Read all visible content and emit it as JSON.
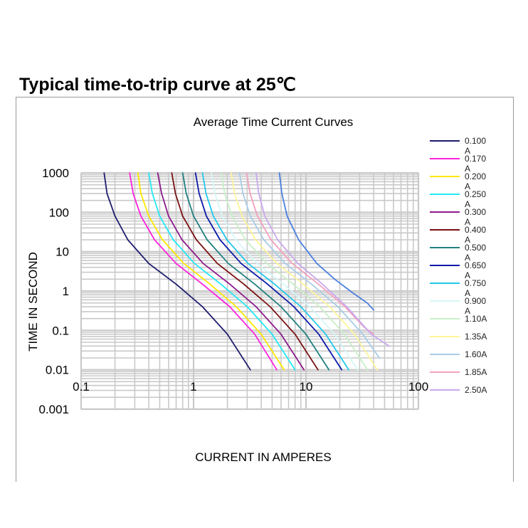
{
  "page": {
    "heading": "Typical time-to-trip curve at 25℃"
  },
  "chart_data": {
    "type": "line",
    "title": "Average Time Current Curves",
    "xlabel": "CURRENT IN AMPERES",
    "ylabel": "TIME IN SECOND",
    "xscale": "log",
    "yscale": "log",
    "xlim": [
      0.1,
      100
    ],
    "ylim": [
      0.001,
      1000
    ],
    "xticks": [
      "0.1",
      "1",
      "10",
      "100"
    ],
    "yticks": [
      "1000",
      "100",
      "10",
      "1",
      "0.1",
      "0.01",
      "0.001"
    ],
    "grid": true,
    "legend_position": "right",
    "series": [
      {
        "name": "0.100 A",
        "color": "#1c1c6e",
        "x": [
          0.16,
          0.17,
          0.2,
          0.26,
          0.4,
          0.7,
          1.2,
          2.0,
          3.2
        ],
        "y": [
          1000,
          300,
          80,
          20,
          5,
          1.5,
          0.4,
          0.08,
          0.01
        ]
      },
      {
        "name": "0.170 A",
        "color": "#ff22dd",
        "x": [
          0.27,
          0.29,
          0.34,
          0.45,
          0.7,
          1.2,
          2.1,
          3.5,
          5.5
        ],
        "y": [
          1000,
          300,
          80,
          20,
          5,
          1.5,
          0.4,
          0.08,
          0.01
        ]
      },
      {
        "name": "0.200 A",
        "color": "#ffe800",
        "x": [
          0.32,
          0.34,
          0.4,
          0.53,
          0.82,
          1.4,
          2.4,
          4.0,
          6.4
        ],
        "y": [
          1000,
          300,
          80,
          20,
          5,
          1.5,
          0.4,
          0.08,
          0.01
        ]
      },
      {
        "name": "0.250 A",
        "color": "#22e8f5",
        "x": [
          0.4,
          0.43,
          0.5,
          0.66,
          1.02,
          1.75,
          3.0,
          5.0,
          8.0
        ],
        "y": [
          1000,
          300,
          80,
          20,
          5,
          1.5,
          0.4,
          0.08,
          0.01
        ]
      },
      {
        "name": "0.300 A",
        "color": "#8b1a8b",
        "x": [
          0.48,
          0.52,
          0.6,
          0.79,
          1.22,
          2.1,
          3.6,
          6.0,
          9.6
        ],
        "y": [
          1000,
          300,
          80,
          20,
          5,
          1.5,
          0.4,
          0.08,
          0.01
        ]
      },
      {
        "name": "0.400 A",
        "color": "#7a1010",
        "x": [
          0.64,
          0.69,
          0.8,
          1.06,
          1.63,
          2.8,
          4.8,
          8.0,
          12.8
        ],
        "y": [
          1000,
          300,
          80,
          20,
          5,
          1.5,
          0.4,
          0.08,
          0.01
        ]
      },
      {
        "name": "0.500 A",
        "color": "#218080",
        "x": [
          0.8,
          0.86,
          1.0,
          1.32,
          2.04,
          3.5,
          6.0,
          10.0,
          16.0
        ],
        "y": [
          1000,
          300,
          80,
          20,
          5,
          1.5,
          0.4,
          0.08,
          0.01
        ]
      },
      {
        "name": "0.650 A",
        "color": "#0a1aa8",
        "x": [
          1.04,
          1.12,
          1.3,
          1.72,
          2.65,
          4.55,
          7.8,
          13.0,
          20.8
        ],
        "y": [
          1000,
          300,
          80,
          20,
          5,
          1.5,
          0.4,
          0.08,
          0.01
        ]
      },
      {
        "name": "0.750 A",
        "color": "#22c8ec",
        "x": [
          1.2,
          1.29,
          1.5,
          1.98,
          3.06,
          5.25,
          9.0,
          15.0,
          24.0
        ],
        "y": [
          1000,
          300,
          80,
          20,
          5,
          1.5,
          0.4,
          0.08,
          0.01
        ]
      },
      {
        "name": "0.900 A",
        "color": "#d6f7f7",
        "x": [
          1.44,
          1.55,
          1.8,
          2.38,
          3.67,
          6.3,
          10.8,
          18.0,
          28.8
        ],
        "y": [
          1000,
          300,
          80,
          20,
          5,
          1.5,
          0.4,
          0.08,
          0.01
        ]
      },
      {
        "name": "1.10A",
        "color": "#c8f0c8",
        "x": [
          1.76,
          1.89,
          2.2,
          2.9,
          4.49,
          7.7,
          13.2,
          22.0,
          35.2
        ],
        "y": [
          1000,
          300,
          80,
          20,
          5,
          1.5,
          0.4,
          0.08,
          0.01
        ]
      },
      {
        "name": "1.35A",
        "color": "#fdf59a",
        "x": [
          2.16,
          2.32,
          2.7,
          3.56,
          5.51,
          9.45,
          16.2,
          27.0,
          43.0
        ],
        "y": [
          1000,
          300,
          80,
          20,
          5,
          1.5,
          0.4,
          0.08,
          0.01
        ]
      },
      {
        "name": "1.60A",
        "color": "#a8cce8",
        "x": [
          2.56,
          2.75,
          3.2,
          4.22,
          6.53,
          11.2,
          19.2,
          32.0,
          45.0
        ],
        "y": [
          1000,
          300,
          80,
          20,
          5,
          1.5,
          0.4,
          0.08,
          0.02
        ]
      },
      {
        "name": "1.85A",
        "color": "#f4a0c0",
        "x": [
          2.96,
          3.18,
          3.7,
          4.88,
          7.55,
          12.9,
          22.2,
          33.0,
          40.0
        ],
        "y": [
          1000,
          300,
          80,
          20,
          5,
          1.5,
          0.4,
          0.12,
          0.08
        ]
      },
      {
        "name": "2.50A",
        "color": "#c8a8ee",
        "x": [
          3.6,
          3.8,
          4.3,
          5.6,
          8.5,
          14.0,
          23.0,
          38.0,
          55.0
        ],
        "y": [
          1000,
          300,
          80,
          20,
          5,
          1.5,
          0.4,
          0.08,
          0.04
        ]
      },
      {
        "name": "",
        "color": "#4a7fe0",
        "x": [
          5.8,
          6.1,
          6.8,
          8.6,
          12.5,
          18.0,
          26.0,
          35.0,
          40.0
        ],
        "y": [
          1000,
          300,
          80,
          20,
          5,
          2.0,
          0.9,
          0.5,
          0.33
        ]
      }
    ]
  }
}
